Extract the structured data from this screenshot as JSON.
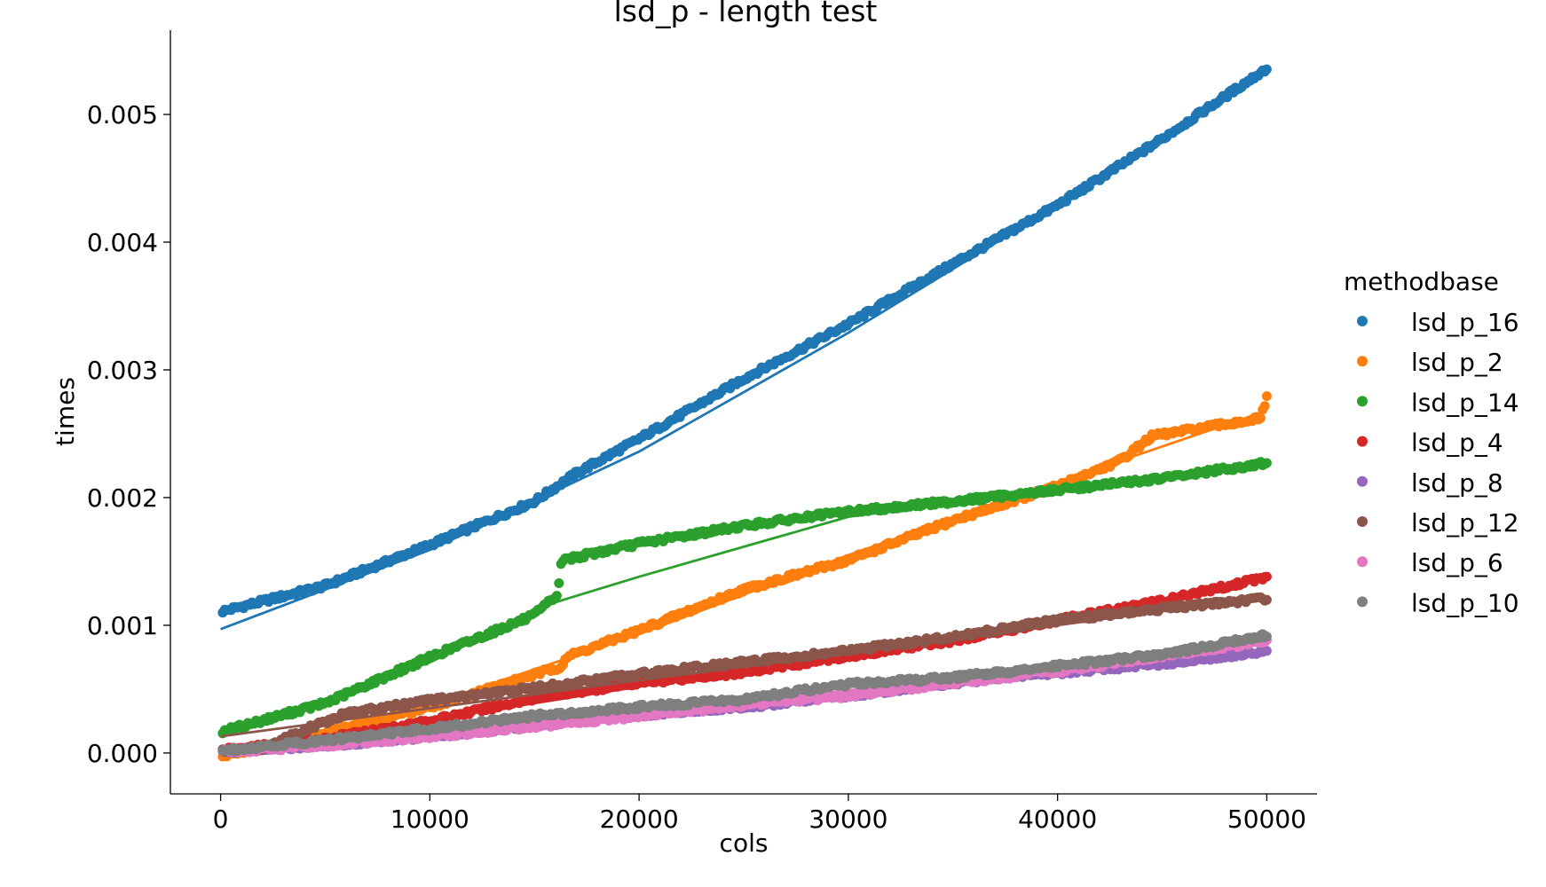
{
  "chart_data": {
    "type": "scatter",
    "title": "lsd_p - length test",
    "xlabel": "cols",
    "ylabel": "times",
    "xlim": [
      -2400,
      52400
    ],
    "ylim": [
      -0.00032,
      0.00566
    ],
    "xticks": [
      0,
      10000,
      20000,
      30000,
      40000,
      50000
    ],
    "xtick_labels": [
      "0",
      "10000",
      "20000",
      "30000",
      "40000",
      "50000"
    ],
    "yticks": [
      0,
      0.001,
      0.002,
      0.003,
      0.004,
      0.005
    ],
    "ytick_labels": [
      "0.000",
      "0.001",
      "0.002",
      "0.003",
      "0.004",
      "0.005"
    ],
    "grid": false,
    "legend": {
      "title": "methodbase",
      "placement": "outside-right"
    },
    "series": [
      {
        "name": "lsd_p_16",
        "color": "#1f77b4",
        "points": [
          [
            100,
            0.00111
          ],
          [
            5000,
            0.00131
          ],
          [
            10000,
            0.00163
          ],
          [
            15000,
            0.00197
          ],
          [
            17000,
            0.00219
          ],
          [
            20000,
            0.00246
          ],
          [
            25000,
            0.00293
          ],
          [
            30000,
            0.00336
          ],
          [
            35000,
            0.00383
          ],
          [
            40000,
            0.00429
          ],
          [
            45000,
            0.00481
          ],
          [
            50000,
            0.00536
          ]
        ],
        "fit": [
          [
            0,
            0.00097
          ],
          [
            10000,
            0.00159
          ],
          [
            20000,
            0.00236
          ],
          [
            30000,
            0.00329
          ],
          [
            40000,
            0.00429
          ],
          [
            50000,
            0.00535
          ]
        ]
      },
      {
        "name": "lsd_p_2",
        "color": "#ff7f0e",
        "points": [
          [
            100,
            -2e-05
          ],
          [
            5000,
            0.00016
          ],
          [
            10000,
            0.00036
          ],
          [
            16300,
            0.00068
          ],
          [
            16500,
            0.00075
          ],
          [
            20000,
            0.00096
          ],
          [
            25000,
            0.00128
          ],
          [
            30000,
            0.00151
          ],
          [
            35000,
            0.00182
          ],
          [
            40000,
            0.00209
          ],
          [
            43000,
            0.00229
          ],
          [
            44500,
            0.00248
          ],
          [
            49700,
            0.00262
          ],
          [
            50000,
            0.00278
          ]
        ],
        "fit": [
          [
            0,
            -4e-05
          ],
          [
            10000,
            0.00038
          ],
          [
            20000,
            0.00093
          ],
          [
            30000,
            0.00155
          ],
          [
            40000,
            0.00212
          ],
          [
            50000,
            0.00268
          ]
        ]
      },
      {
        "name": "lsd_p_14",
        "color": "#2ca02c",
        "points": [
          [
            100,
            0.00017
          ],
          [
            5000,
            0.00039
          ],
          [
            10000,
            0.00075
          ],
          [
            15000,
            0.00108
          ],
          [
            16100,
            0.00124
          ],
          [
            16300,
            0.00151
          ],
          [
            20000,
            0.00164
          ],
          [
            25000,
            0.00178
          ],
          [
            30000,
            0.00189
          ],
          [
            35000,
            0.00197
          ],
          [
            40000,
            0.00206
          ],
          [
            45000,
            0.00215
          ],
          [
            50000,
            0.00227
          ]
        ],
        "fit": [
          [
            0,
            0.00013
          ],
          [
            10000,
            0.00071
          ],
          [
            16000,
            0.00118
          ],
          [
            20000,
            0.00138
          ],
          [
            30000,
            0.00185
          ],
          [
            40000,
            0.00206
          ],
          [
            50000,
            0.00227
          ]
        ]
      },
      {
        "name": "lsd_p_4",
        "color": "#d62728",
        "points": [
          [
            100,
            2e-05
          ],
          [
            5000,
            0.00011
          ],
          [
            10000,
            0.00025
          ],
          [
            15000,
            0.00043
          ],
          [
            20000,
            0.00055
          ],
          [
            25000,
            0.00063
          ],
          [
            30000,
            0.00076
          ],
          [
            35000,
            0.00088
          ],
          [
            40000,
            0.00104
          ],
          [
            45000,
            0.00119
          ],
          [
            50000,
            0.00138
          ]
        ],
        "fit": [
          [
            0,
            1e-05
          ],
          [
            10000,
            0.00026
          ],
          [
            20000,
            0.00052
          ],
          [
            30000,
            0.00078
          ],
          [
            40000,
            0.00104
          ],
          [
            50000,
            0.00136
          ]
        ]
      },
      {
        "name": "lsd_p_8",
        "color": "#9467bd",
        "points": [
          [
            100,
            1e-05
          ],
          [
            5000,
            6e-05
          ],
          [
            10000,
            0.00013
          ],
          [
            15000,
            0.00022
          ],
          [
            20000,
            0.0003
          ],
          [
            25000,
            0.00036
          ],
          [
            30000,
            0.00045
          ],
          [
            35000,
            0.00055
          ],
          [
            40000,
            0.00063
          ],
          [
            45000,
            0.0007
          ],
          [
            50000,
            0.0008
          ]
        ],
        "fit": [
          [
            0,
            0.0
          ],
          [
            10000,
            0.00015
          ],
          [
            20000,
            0.00031
          ],
          [
            30000,
            0.00046
          ],
          [
            40000,
            0.00063
          ],
          [
            50000,
            0.00081
          ]
        ]
      },
      {
        "name": "lsd_p_12",
        "color": "#8c564b",
        "points": [
          [
            100,
            2e-05
          ],
          [
            2000,
            3e-05
          ],
          [
            4000,
            0.00018
          ],
          [
            6000,
            0.00031
          ],
          [
            10000,
            0.00041
          ],
          [
            15000,
            0.00051
          ],
          [
            20000,
            0.00062
          ],
          [
            25000,
            0.00071
          ],
          [
            30000,
            0.0008
          ],
          [
            35000,
            0.00091
          ],
          [
            40000,
            0.00104
          ],
          [
            45000,
            0.00113
          ],
          [
            50000,
            0.00121
          ]
        ],
        "fit": [
          [
            0,
            0.00013
          ],
          [
            10000,
            0.00035
          ],
          [
            20000,
            0.00057
          ],
          [
            30000,
            0.00078
          ],
          [
            40000,
            0.001
          ],
          [
            50000,
            0.00122
          ]
        ]
      },
      {
        "name": "lsd_p_6",
        "color": "#e377c2",
        "points": [
          [
            100,
            1e-05
          ],
          [
            5000,
            6e-05
          ],
          [
            10000,
            0.00013
          ],
          [
            15000,
            0.00021
          ],
          [
            20000,
            0.00029
          ],
          [
            25000,
            0.00038
          ],
          [
            30000,
            0.00045
          ],
          [
            35000,
            0.00055
          ],
          [
            40000,
            0.00064
          ],
          [
            45000,
            0.00076
          ],
          [
            50000,
            0.00088
          ]
        ],
        "fit": [
          [
            0,
            0.0
          ],
          [
            10000,
            0.00015
          ],
          [
            20000,
            0.00032
          ],
          [
            30000,
            0.00049
          ],
          [
            40000,
            0.00067
          ],
          [
            50000,
            0.00086
          ]
        ]
      },
      {
        "name": "lsd_p_10",
        "color": "#7f7f7f",
        "points": [
          [
            100,
            2e-05
          ],
          [
            5000,
            0.0001
          ],
          [
            10000,
            0.00019
          ],
          [
            15000,
            0.00029
          ],
          [
            20000,
            0.00036
          ],
          [
            25000,
            0.00042
          ],
          [
            30000,
            0.00054
          ],
          [
            35000,
            0.00059
          ],
          [
            40000,
            0.00068
          ],
          [
            45000,
            0.00077
          ],
          [
            50000,
            0.00092
          ]
        ],
        "fit": [
          [
            0,
            2e-05
          ],
          [
            10000,
            0.00018
          ],
          [
            20000,
            0.00036
          ],
          [
            30000,
            0.00053
          ],
          [
            40000,
            0.0007
          ],
          [
            50000,
            0.00088
          ]
        ]
      }
    ]
  }
}
